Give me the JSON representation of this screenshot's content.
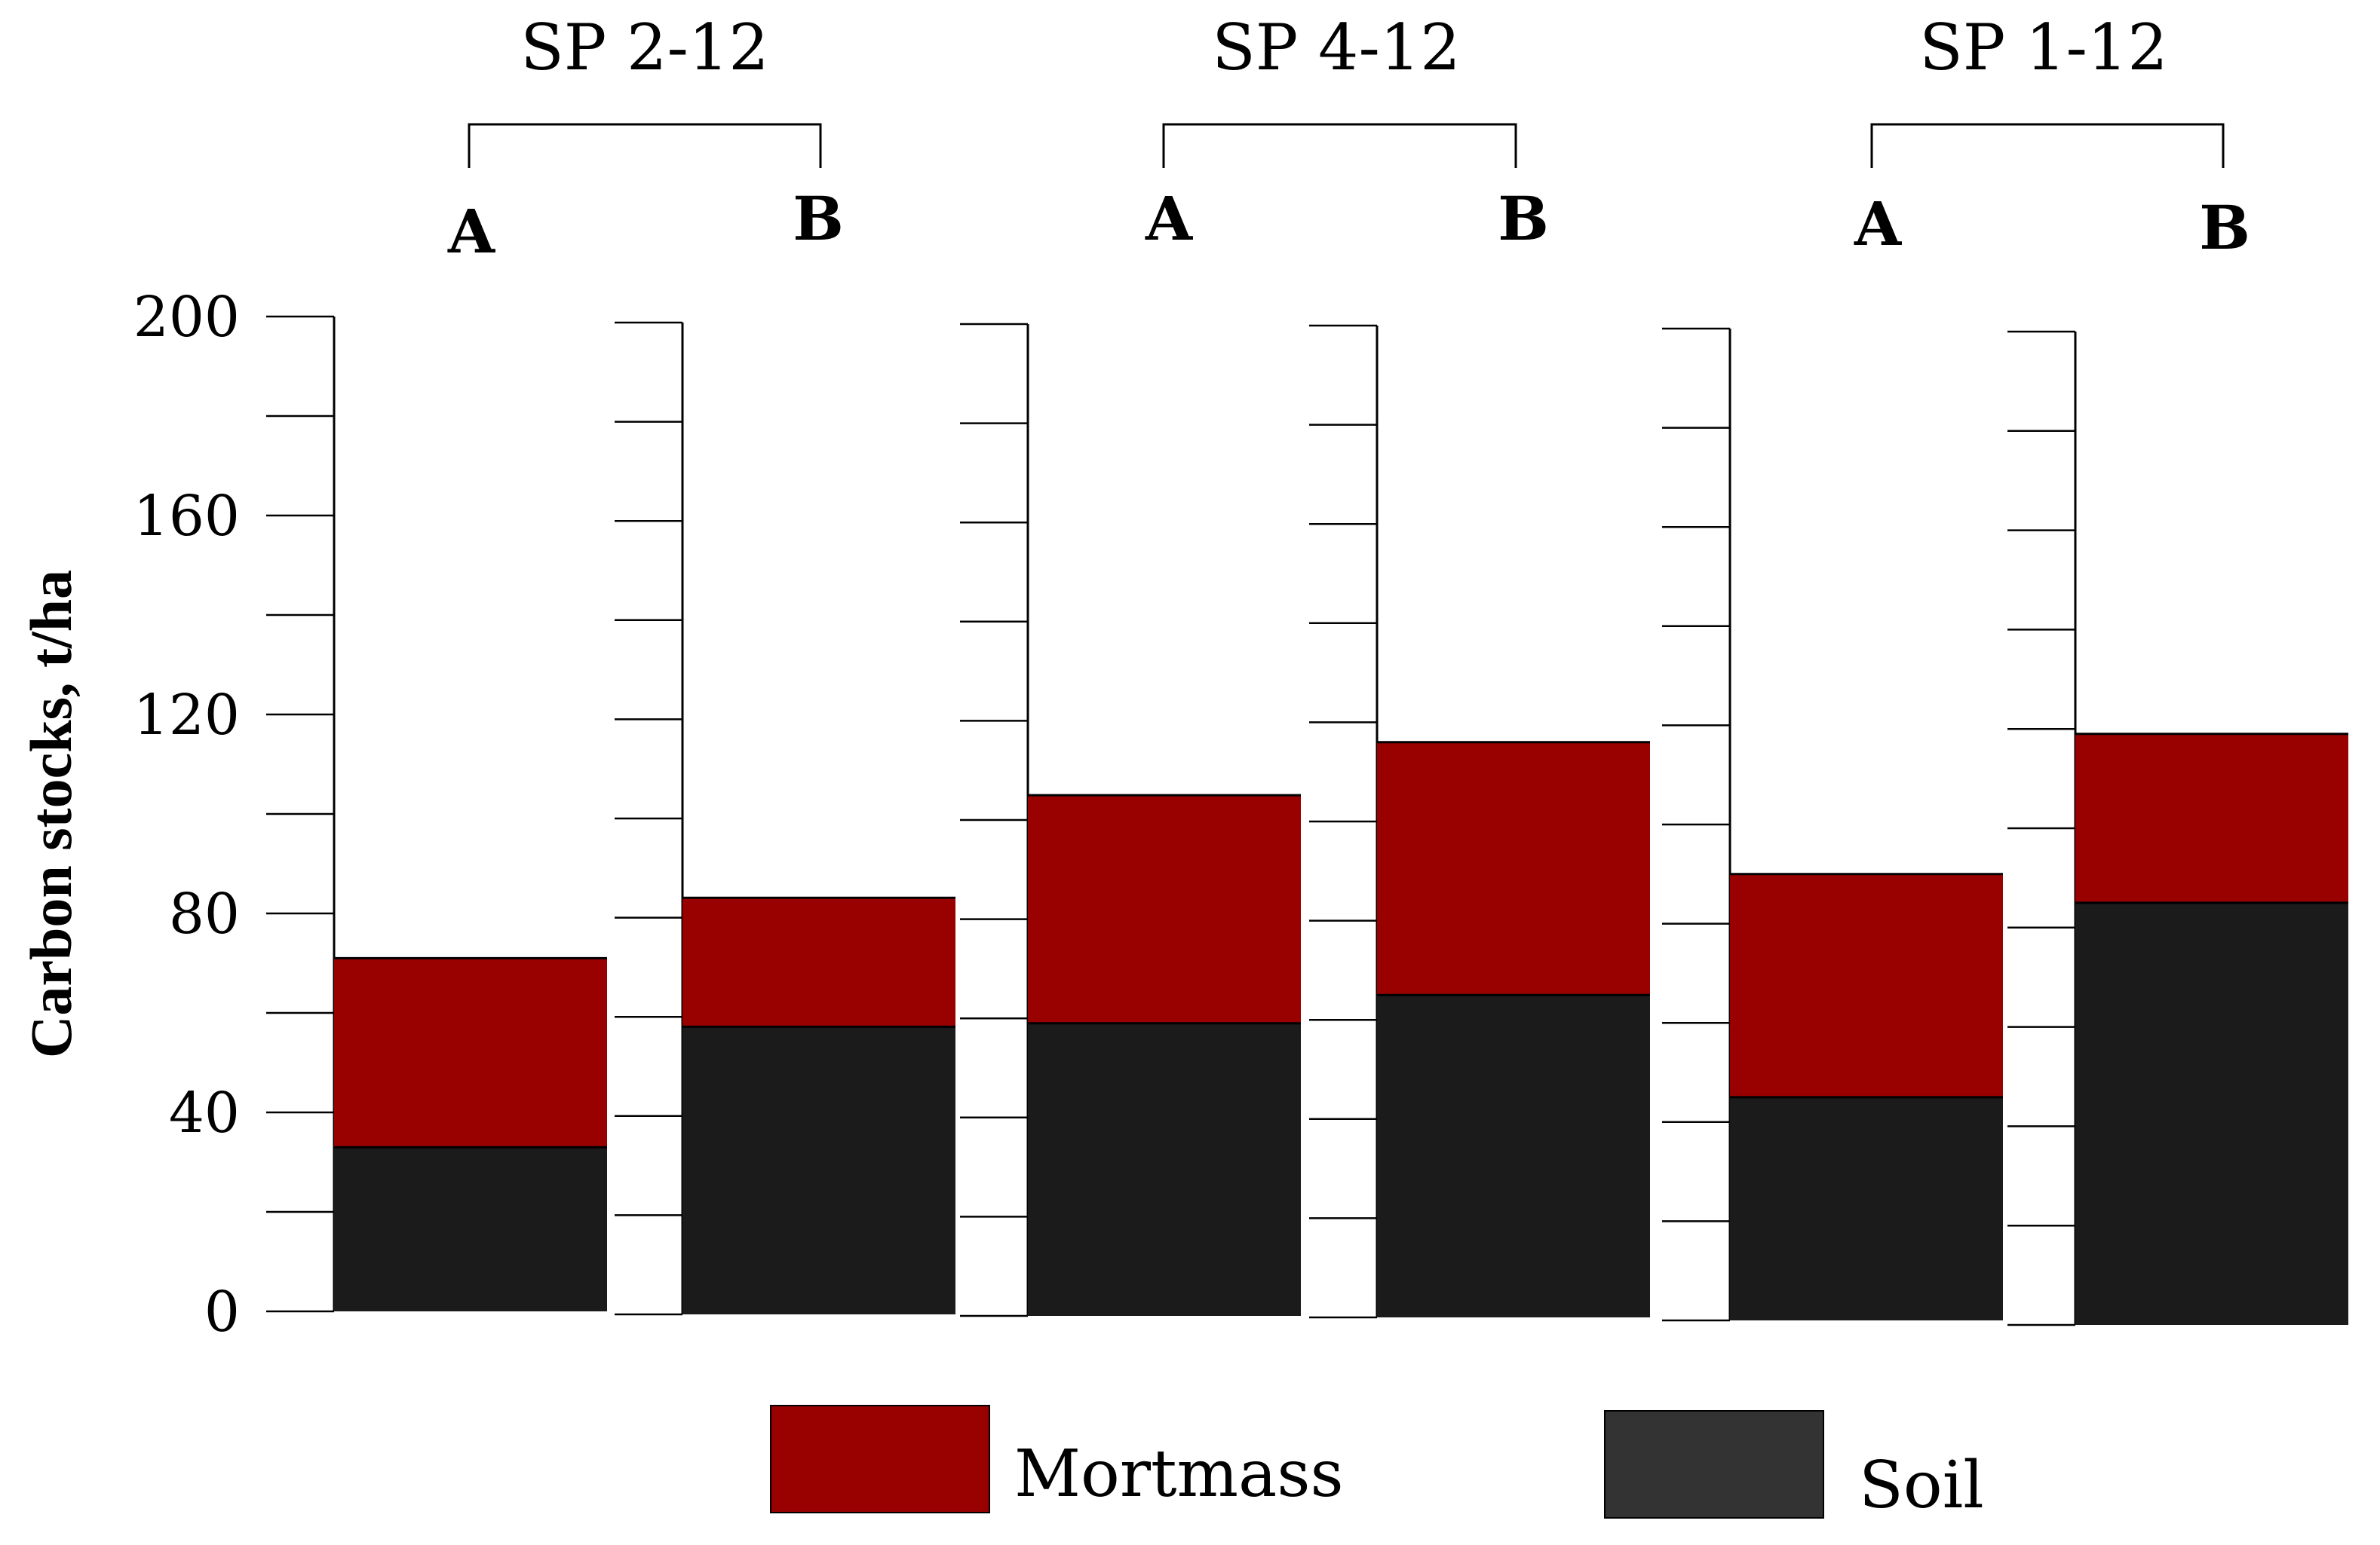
{
  "chart_data": {
    "type": "bar",
    "stacked": true,
    "title": "",
    "xlabel": "",
    "ylabel": "Carbon stocks, t/ha",
    "ylim": [
      0,
      200
    ],
    "yticks": [
      0,
      40,
      80,
      120,
      160,
      200
    ],
    "yticks_labels": [
      "0",
      "40",
      "80",
      "120",
      "160",
      "200"
    ],
    "grid": false,
    "groups": [
      {
        "label": "SP 2-12",
        "categories": [
          "A",
          "B"
        ]
      },
      {
        "label": "SP 4-12",
        "categories": [
          "A",
          "B"
        ]
      },
      {
        "label": "SP 1-12",
        "categories": [
          "A",
          "B"
        ]
      }
    ],
    "categories": [
      "A",
      "B",
      "A",
      "B",
      "A",
      "B"
    ],
    "series": [
      {
        "name": "Soil",
        "color": "#1b1b1b",
        "values": [
          33,
          58,
          59,
          65,
          45,
          85
        ]
      },
      {
        "name": "Mortmass",
        "color": "#990000",
        "values": [
          38,
          26,
          46,
          51,
          45,
          34
        ]
      }
    ],
    "legend": {
      "position": "bottom",
      "items": [
        {
          "name": "Mortmass",
          "color": "#990000"
        },
        {
          "name": "Soil",
          "color": "#333333"
        }
      ]
    }
  }
}
